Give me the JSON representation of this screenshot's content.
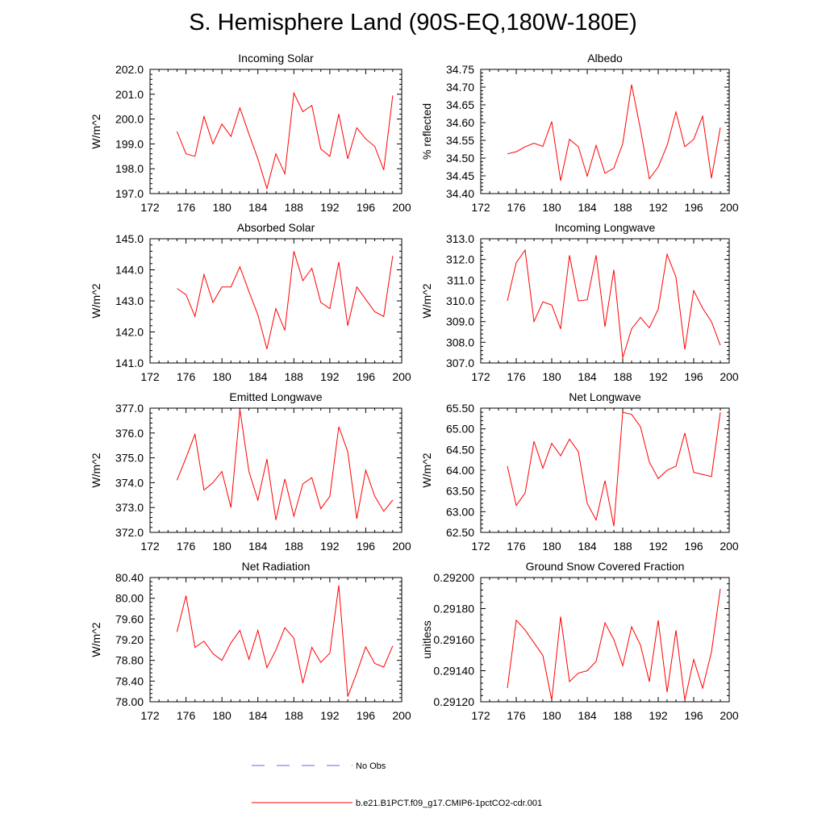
{
  "title": "S. Hemisphere Land (90S-EQ,180W-180E)",
  "colors": {
    "model": "#ff0000",
    "obs": "#6a6ad8",
    "axis": "#000000"
  },
  "legend": {
    "obs_label": "No Obs",
    "model_label": "b.e21.B1PCT.f09_g17.CMIP6-1pctCO2-cdr.001"
  },
  "chart_data": [
    {
      "type": "line",
      "title": "Incoming Solar",
      "ylabel": "W/m^2",
      "xlim": [
        172,
        200
      ],
      "xticks": [
        172,
        176,
        180,
        184,
        188,
        192,
        196,
        200
      ],
      "ylim": [
        197.0,
        202.0
      ],
      "yticks": [
        "197.0",
        "198.0",
        "199.0",
        "200.0",
        "201.0",
        "202.0"
      ],
      "x": [
        175,
        176,
        177,
        178,
        179,
        180,
        181,
        182,
        183,
        184,
        185,
        186,
        187,
        188,
        189,
        190,
        191,
        192,
        193,
        194,
        195,
        196,
        197,
        198,
        199
      ],
      "series": [
        {
          "values": [
            199.5,
            198.6,
            198.5,
            200.1,
            199.0,
            199.8,
            199.3,
            200.45,
            199.4,
            198.4,
            197.2,
            198.6,
            197.8,
            201.05,
            200.3,
            200.55,
            198.8,
            198.5,
            200.2,
            198.4,
            199.65,
            199.2,
            198.9,
            197.95,
            200.95
          ]
        }
      ]
    },
    {
      "type": "line",
      "title": "Albedo",
      "ylabel": "% reflected",
      "xlim": [
        172,
        200
      ],
      "xticks": [
        172,
        176,
        180,
        184,
        188,
        192,
        196,
        200
      ],
      "ylim": [
        34.4,
        34.75
      ],
      "yticks": [
        "34.40",
        "34.45",
        "34.50",
        "34.55",
        "34.60",
        "34.65",
        "34.70",
        "34.75"
      ],
      "x": [
        175,
        176,
        177,
        178,
        179,
        180,
        181,
        182,
        183,
        184,
        185,
        186,
        187,
        188,
        189,
        190,
        191,
        192,
        193,
        194,
        195,
        196,
        197,
        198,
        199
      ],
      "series": [
        {
          "values": [
            34.512,
            34.518,
            34.532,
            34.542,
            34.533,
            34.603,
            34.436,
            34.553,
            34.532,
            34.449,
            34.536,
            34.457,
            34.472,
            34.541,
            34.707,
            34.581,
            34.442,
            34.475,
            34.536,
            34.63,
            34.532,
            34.553,
            34.618,
            34.443,
            34.586
          ]
        }
      ]
    },
    {
      "type": "line",
      "title": "Absorbed Solar",
      "ylabel": "W/m^2",
      "xlim": [
        172,
        200
      ],
      "xticks": [
        172,
        176,
        180,
        184,
        188,
        192,
        196,
        200
      ],
      "ylim": [
        141.0,
        145.0
      ],
      "yticks": [
        "141.0",
        "142.0",
        "143.0",
        "144.0",
        "145.0"
      ],
      "x": [
        175,
        176,
        177,
        178,
        179,
        180,
        181,
        182,
        183,
        184,
        185,
        186,
        187,
        188,
        189,
        190,
        191,
        192,
        193,
        194,
        195,
        196,
        197,
        198,
        199
      ],
      "series": [
        {
          "values": [
            143.4,
            143.2,
            142.5,
            143.85,
            142.95,
            143.45,
            143.45,
            144.1,
            143.3,
            142.55,
            141.45,
            142.75,
            142.05,
            144.6,
            143.65,
            144.05,
            142.95,
            142.75,
            144.25,
            142.2,
            143.45,
            143.05,
            142.65,
            142.5,
            144.45
          ]
        }
      ]
    },
    {
      "type": "line",
      "title": "Incoming Longwave",
      "ylabel": "W/m^2",
      "xlim": [
        172,
        200
      ],
      "xticks": [
        172,
        176,
        180,
        184,
        188,
        192,
        196,
        200
      ],
      "ylim": [
        307.0,
        313.0
      ],
      "yticks": [
        "307.0",
        "308.0",
        "309.0",
        "310.0",
        "311.0",
        "312.0",
        "313.0"
      ],
      "x": [
        175,
        176,
        177,
        178,
        179,
        180,
        181,
        182,
        183,
        184,
        185,
        186,
        187,
        188,
        189,
        190,
        191,
        192,
        193,
        194,
        195,
        196,
        197,
        198,
        199
      ],
      "series": [
        {
          "values": [
            310.0,
            311.85,
            312.45,
            309.0,
            309.95,
            309.8,
            308.65,
            312.2,
            310.0,
            310.05,
            312.2,
            308.75,
            311.5,
            307.25,
            308.65,
            309.2,
            308.7,
            309.6,
            312.25,
            311.15,
            307.65,
            310.5,
            309.65,
            309.0,
            307.85
          ]
        }
      ]
    },
    {
      "type": "line",
      "title": "Emitted Longwave",
      "ylabel": "W/m^2",
      "xlim": [
        172,
        200
      ],
      "xticks": [
        172,
        176,
        180,
        184,
        188,
        192,
        196,
        200
      ],
      "ylim": [
        372.0,
        377.0
      ],
      "yticks": [
        "372.0",
        "373.0",
        "374.0",
        "375.0",
        "376.0",
        "377.0"
      ],
      "x": [
        175,
        176,
        177,
        178,
        179,
        180,
        181,
        182,
        183,
        184,
        185,
        186,
        187,
        188,
        189,
        190,
        191,
        192,
        193,
        194,
        195,
        196,
        197,
        198,
        199
      ],
      "series": [
        {
          "values": [
            374.1,
            375.0,
            375.95,
            373.7,
            374.0,
            374.45,
            373.0,
            376.95,
            374.45,
            373.3,
            374.95,
            372.5,
            374.15,
            372.65,
            373.95,
            374.2,
            372.95,
            373.45,
            376.25,
            375.25,
            372.55,
            374.5,
            373.45,
            372.85,
            373.3
          ]
        }
      ]
    },
    {
      "type": "line",
      "title": "Net Longwave",
      "ylabel": "W/m^2",
      "xlim": [
        172,
        200
      ],
      "xticks": [
        172,
        176,
        180,
        184,
        188,
        192,
        196,
        200
      ],
      "ylim": [
        62.5,
        65.5
      ],
      "yticks": [
        "62.50",
        "63.00",
        "63.50",
        "64.00",
        "64.50",
        "65.00",
        "65.50"
      ],
      "x": [
        175,
        176,
        177,
        178,
        179,
        180,
        181,
        182,
        183,
        184,
        185,
        186,
        187,
        188,
        189,
        190,
        191,
        192,
        193,
        194,
        195,
        196,
        197,
        198,
        199
      ],
      "series": [
        {
          "values": [
            64.1,
            63.15,
            63.45,
            64.7,
            64.05,
            64.65,
            64.35,
            64.75,
            64.45,
            63.2,
            62.8,
            63.75,
            62.65,
            65.4,
            65.35,
            65.05,
            64.2,
            63.8,
            64.0,
            64.1,
            64.9,
            63.95,
            63.9,
            63.85,
            65.4
          ]
        }
      ]
    },
    {
      "type": "line",
      "title": "Net Radiation",
      "ylabel": "W/m^2",
      "xlim": [
        172,
        200
      ],
      "xticks": [
        172,
        176,
        180,
        184,
        188,
        192,
        196,
        200
      ],
      "ylim": [
        78.0,
        80.4
      ],
      "yticks": [
        "78.00",
        "78.40",
        "78.80",
        "79.20",
        "79.60",
        "80.00",
        "80.40"
      ],
      "x": [
        175,
        176,
        177,
        178,
        179,
        180,
        181,
        182,
        183,
        184,
        185,
        186,
        187,
        188,
        189,
        190,
        191,
        192,
        193,
        194,
        195,
        196,
        197,
        198,
        199
      ],
      "series": [
        {
          "values": [
            79.35,
            80.05,
            79.05,
            79.17,
            78.93,
            78.8,
            79.14,
            79.38,
            78.82,
            79.38,
            78.66,
            79.0,
            79.43,
            79.23,
            78.36,
            79.05,
            78.76,
            78.94,
            80.25,
            78.1,
            78.56,
            79.06,
            78.74,
            78.67,
            79.08
          ]
        }
      ]
    },
    {
      "type": "line",
      "title": "Ground Snow Covered Fraction",
      "ylabel": "unitless",
      "xlim": [
        172,
        200
      ],
      "xticks": [
        172,
        176,
        180,
        184,
        188,
        192,
        196,
        200
      ],
      "ylim": [
        0.2912,
        0.292
      ],
      "yticks": [
        "0.29120",
        "0.29140",
        "0.29160",
        "0.29180",
        "0.29200"
      ],
      "x": [
        175,
        176,
        177,
        178,
        179,
        180,
        181,
        182,
        183,
        184,
        185,
        186,
        187,
        188,
        189,
        190,
        191,
        192,
        193,
        194,
        195,
        196,
        197,
        198,
        199
      ],
      "series": [
        {
          "values": [
            0.291288,
            0.291725,
            0.291662,
            0.29158,
            0.291498,
            0.29121,
            0.291748,
            0.29133,
            0.291385,
            0.2914,
            0.29146,
            0.291708,
            0.2916,
            0.291432,
            0.291683,
            0.291565,
            0.29133,
            0.291725,
            0.291262,
            0.29166,
            0.29121,
            0.291472,
            0.291288,
            0.29152,
            0.291928
          ]
        }
      ]
    }
  ]
}
